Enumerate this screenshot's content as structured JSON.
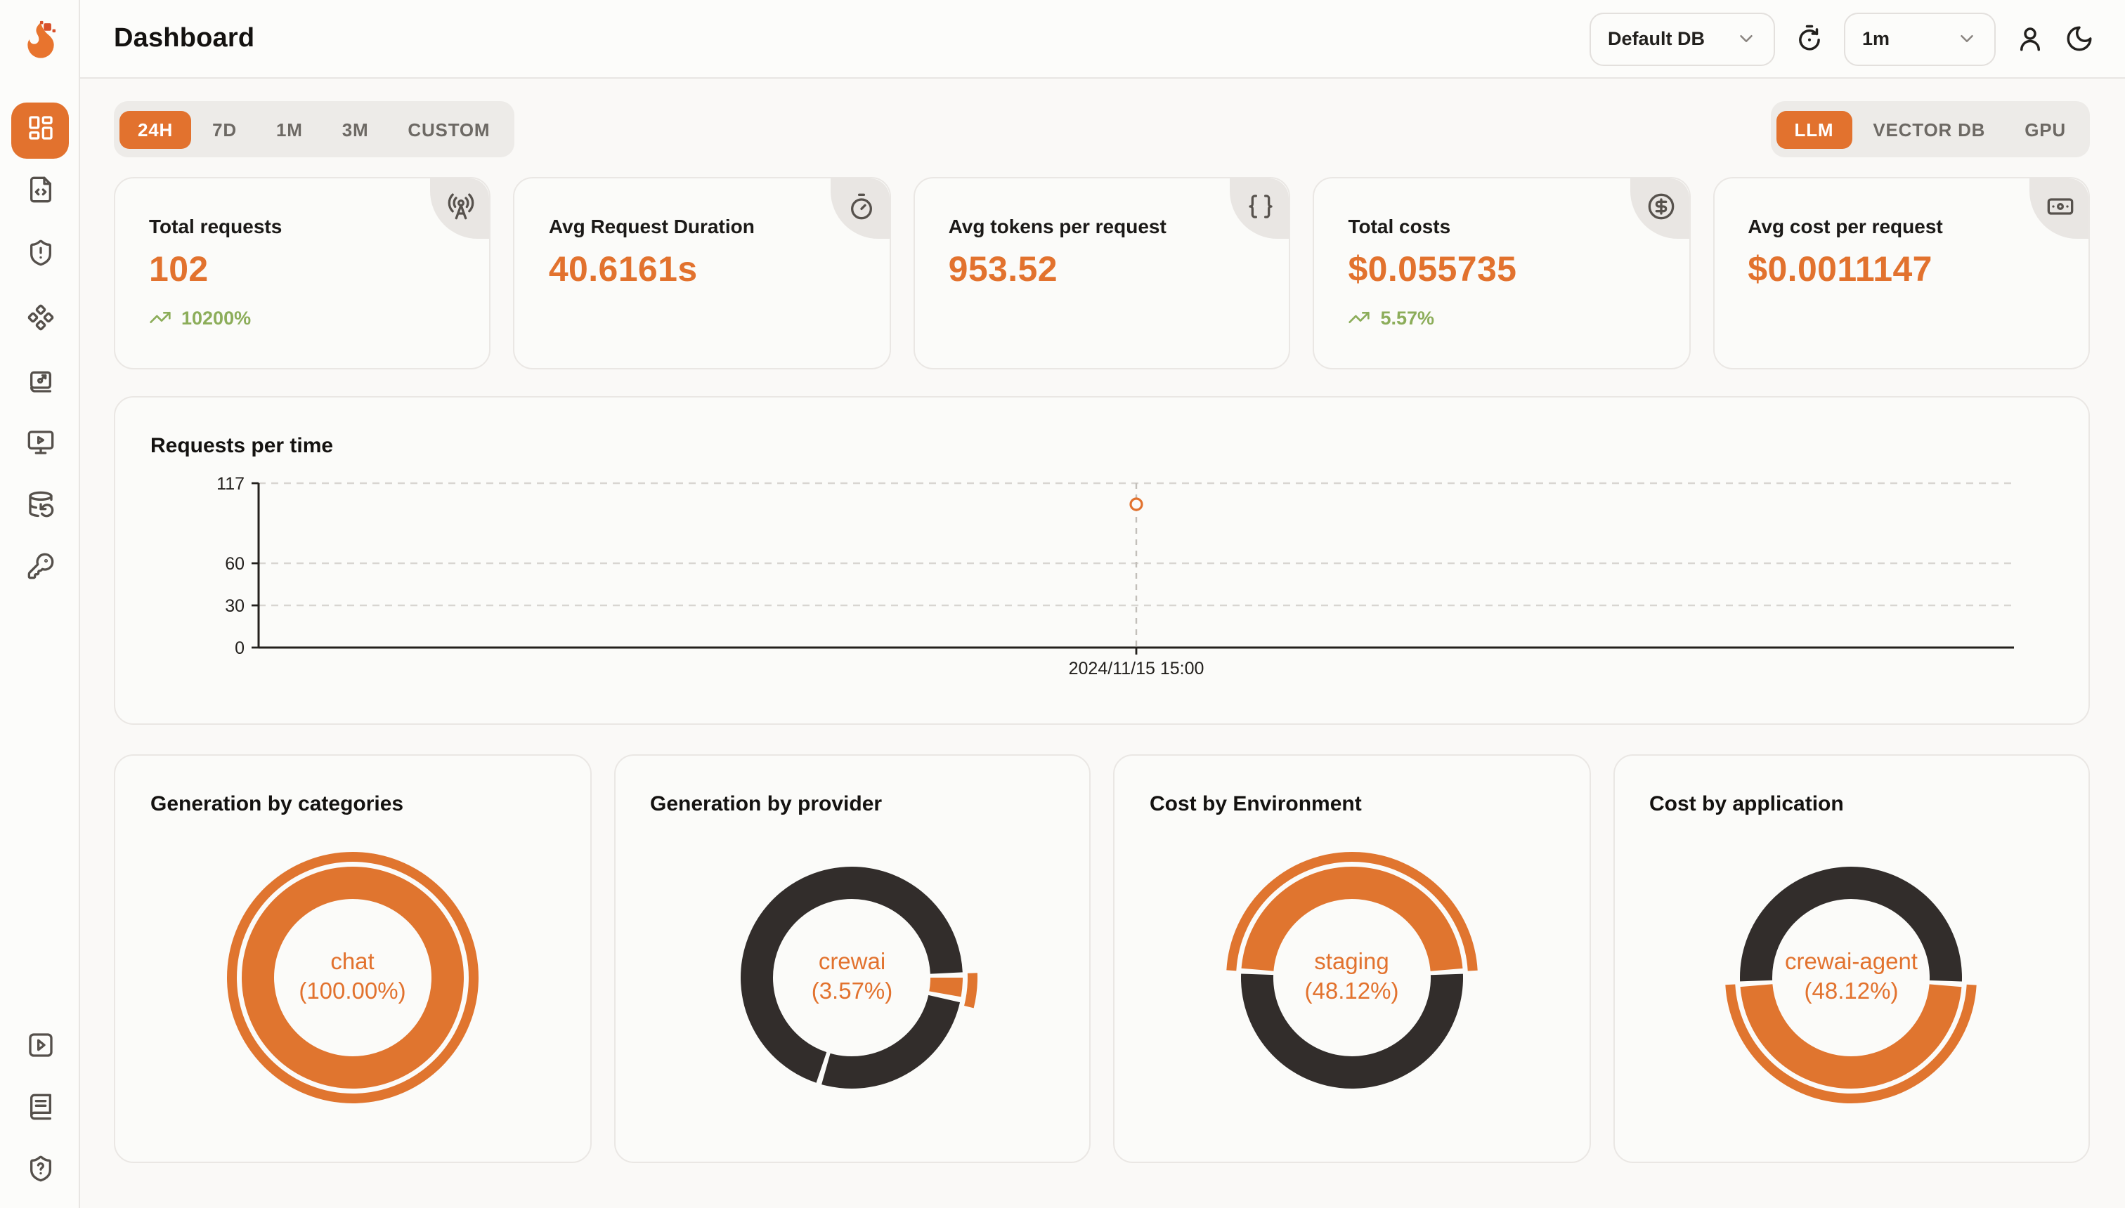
{
  "colors": {
    "accent": "#E2722E",
    "donut_orange": "#E0752F",
    "donut_dark": "#322D2B",
    "green": "#8CAD5A"
  },
  "header": {
    "title": "Dashboard",
    "db_select": {
      "value": "Default DB"
    },
    "interval_select": {
      "value": "1m"
    },
    "icons": [
      "history-icon",
      "user-icon",
      "moon-icon"
    ]
  },
  "sidebar": {
    "items": [
      {
        "icon": "dashboard-grid-icon",
        "active": true
      },
      {
        "icon": "file-code-icon"
      },
      {
        "icon": "shield-alert-icon"
      },
      {
        "icon": "component-diamonds-icon"
      },
      {
        "icon": "evaluation-board-icon"
      },
      {
        "icon": "monitor-play-icon"
      },
      {
        "icon": "database-backup-icon"
      },
      {
        "icon": "key-icon"
      }
    ],
    "bottom_items": [
      {
        "icon": "square-play-icon"
      },
      {
        "icon": "book-icon"
      },
      {
        "icon": "shield-question-icon"
      }
    ]
  },
  "time_tabs": {
    "items": [
      {
        "label": "24H",
        "active": true
      },
      {
        "label": "7D"
      },
      {
        "label": "1M"
      },
      {
        "label": "3M"
      },
      {
        "label": "CUSTOM"
      }
    ]
  },
  "source_tabs": {
    "items": [
      {
        "label": "LLM",
        "active": true
      },
      {
        "label": "VECTOR DB"
      },
      {
        "label": "GPU"
      }
    ]
  },
  "stat_cards": [
    {
      "label": "Total requests",
      "value": "102",
      "trend": "10200%",
      "icon": "radio-tower-icon"
    },
    {
      "label": "Avg Request Duration",
      "value": "40.6161s",
      "icon": "stopwatch-icon"
    },
    {
      "label": "Avg tokens per request",
      "value": "953.52",
      "icon": "braces-icon"
    },
    {
      "label": "Total costs",
      "value": "$0.055735",
      "trend": "5.57%",
      "icon": "circle-dollar-icon"
    },
    {
      "label": "Avg cost per request",
      "value": "$0.0011147",
      "icon": "banknote-icon"
    }
  ],
  "chart_data": [
    {
      "type": "line",
      "title": "Requests per time",
      "ymax": 117,
      "yticks": [
        0,
        30,
        60,
        117
      ],
      "grid": "dashed-horizontal",
      "series": [
        {
          "name": "requests",
          "points": [
            {
              "x_label": "2024/11/15 15:00",
              "x_frac": 0.5,
              "y": 102
            }
          ]
        }
      ]
    },
    {
      "type": "donut",
      "title": "Generation by categories",
      "center_label": "chat",
      "center_pct": "(100.00%)",
      "segments": [
        {
          "label": "chat",
          "pct": 100,
          "start_pct": 0,
          "color_key": "orange"
        }
      ],
      "highlight": {
        "start_pct": 0,
        "span_pct": 100
      }
    },
    {
      "type": "donut",
      "title": "Generation by provider",
      "center_label": "crewai",
      "center_pct": "(3.57%)",
      "segments": [
        {
          "label": "crewai",
          "pct": 3.57,
          "start_pct": 24.6,
          "color_key": "orange"
        },
        {
          "pct": 26.6,
          "start_pct": 28.17,
          "color_key": "dark"
        },
        {
          "pct": 69.83,
          "start_pct": 54.77,
          "color_key": "dark"
        }
      ],
      "highlight": {
        "start_pct": 24.4,
        "span_pct": 4.5
      }
    },
    {
      "type": "donut",
      "title": "Cost by Environment",
      "center_label": "staging",
      "center_pct": "(48.12%)",
      "segments": [
        {
          "label": "staging",
          "pct": 48.12,
          "start_pct": 75.94,
          "color_key": "orange"
        },
        {
          "pct": 51.88,
          "start_pct": 24.06,
          "color_key": "dark"
        }
      ],
      "highlight": {
        "start_pct": 75.94,
        "span_pct": 48.12
      }
    },
    {
      "type": "donut",
      "title": "Cost by application",
      "center_label": "crewai-agent",
      "center_pct": "(48.12%)",
      "segments": [
        {
          "label": "crewai-agent",
          "pct": 48.12,
          "start_pct": 25.94,
          "color_key": "orange"
        },
        {
          "pct": 51.88,
          "start_pct": 74.06,
          "color_key": "dark"
        }
      ],
      "highlight": {
        "start_pct": 25.94,
        "span_pct": 48.12
      }
    }
  ]
}
